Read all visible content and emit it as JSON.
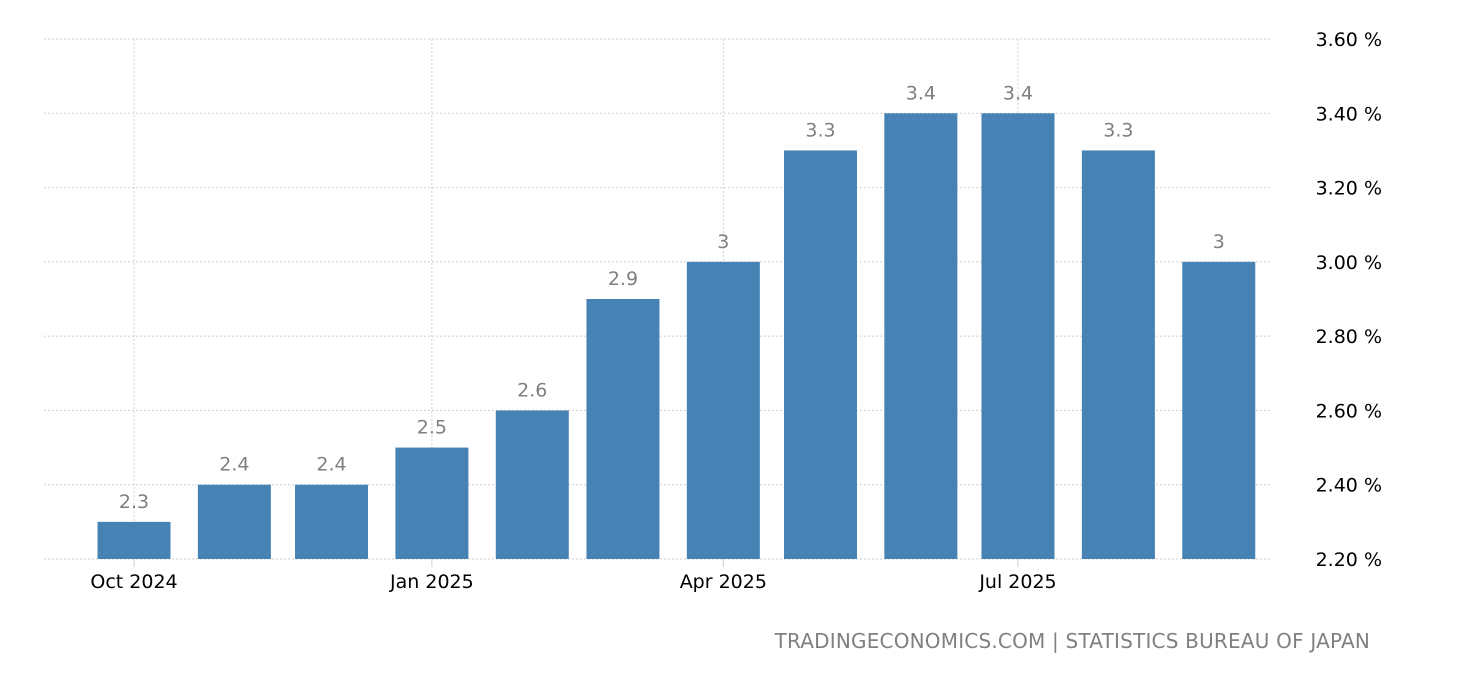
{
  "chart_data": {
    "type": "bar",
    "title": "",
    "xlabel": "",
    "ylabel": "",
    "categories": [
      "2024-10",
      "2024-11",
      "2024-12",
      "2025-01",
      "2025-02",
      "2025-03",
      "2025-04",
      "2025-05",
      "2025-06",
      "2025-07",
      "2025-08",
      "2025-09"
    ],
    "values": [
      2.3,
      2.4,
      2.4,
      2.5,
      2.6,
      2.9,
      3.0,
      3.3,
      3.4,
      3.4,
      3.3,
      3.0
    ],
    "data_labels": [
      "2.3",
      "2.4",
      "2.4",
      "2.5",
      "2.6",
      "2.9",
      "3",
      "3.3",
      "3.4",
      "3.4",
      "3.3",
      "3"
    ],
    "ylim": [
      2.2,
      3.6
    ],
    "yticks": [
      2.2,
      2.4,
      2.6,
      2.8,
      3.0,
      3.2,
      3.4,
      3.6
    ],
    "ytick_labels": [
      "2.20 %",
      "2.40 %",
      "2.60 %",
      "2.80 %",
      "3.00 %",
      "3.20 %",
      "3.40 %",
      "3.60 %"
    ],
    "xticks": [
      "2024-10",
      "2025-01",
      "2025-04",
      "2025-07"
    ],
    "xtick_labels": [
      "Oct 2024",
      "Jan 2025",
      "Apr 2025",
      "Jul 2025"
    ],
    "grid": true,
    "bar_color": "#4682b4",
    "axis_position": "right"
  },
  "source": "TRADINGECONOMICS.COM | STATISTICS BUREAU OF JAPAN"
}
